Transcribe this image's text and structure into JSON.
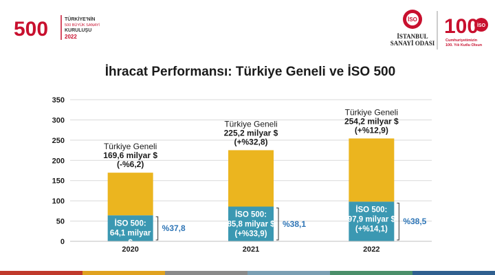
{
  "header": {
    "event_logo": {
      "number": "500",
      "line1": "TÜRKİYE'NİN",
      "line2": "500 BÜYÜK SANAYİ",
      "line3": "KURULUŞU",
      "year": "2022"
    },
    "iso_logo": {
      "badge": "İSO",
      "line1": "İSTANBUL",
      "line2": "SANAYİ ODASI"
    },
    "centennial_logo": {
      "number": "100",
      "badge": "İSO",
      "line1": "Cumhuriyetimizin",
      "line2": "100. Yılı Kutlu Olsun"
    }
  },
  "chart_data": {
    "type": "bar",
    "title": "İhracat Performansı: Türkiye Geneli ve İSO 500",
    "categories": [
      "2020",
      "2021",
      "2022"
    ],
    "ylim": [
      0,
      350
    ],
    "yticks": [
      "0",
      "50",
      "100",
      "150",
      "200",
      "250",
      "300",
      "350"
    ],
    "grid": true,
    "series": [
      {
        "name": "İSO 500",
        "values": [
          64.1,
          85.8,
          97.9
        ],
        "color": "#3b98b2"
      },
      {
        "name": "Türkiye Geneli",
        "values": [
          169.6,
          225.2,
          254.2
        ],
        "color": "#ebb51f"
      }
    ],
    "labels_top": [
      [
        "Türkiye Geneli",
        "169,6 milyar $",
        "(-%6,2)"
      ],
      [
        "Türkiye Geneli",
        "225,2 milyar $",
        "(+%32,8)"
      ],
      [
        "Türkiye Geneli",
        "254,2 milyar $",
        "(+%12,9)"
      ]
    ],
    "labels_inner": [
      [
        "İSO 500:",
        "64,1 milyar",
        "$"
      ],
      [
        "İSO 500:",
        "85,8 milyar $",
        "(+%33,9)"
      ],
      [
        "İSO 500:",
        "97,9 milyar $",
        "(+%14,1)"
      ]
    ],
    "shares": [
      "%37,8",
      "%38,1",
      "%38,5"
    ],
    "share_color": "#2e75b6"
  },
  "colors": {
    "bottom_bar": [
      "#c0392b",
      "#e0a21f",
      "#8a8a8a",
      "#7b9fb3",
      "#4a8f6a",
      "#2f5f8f"
    ]
  }
}
